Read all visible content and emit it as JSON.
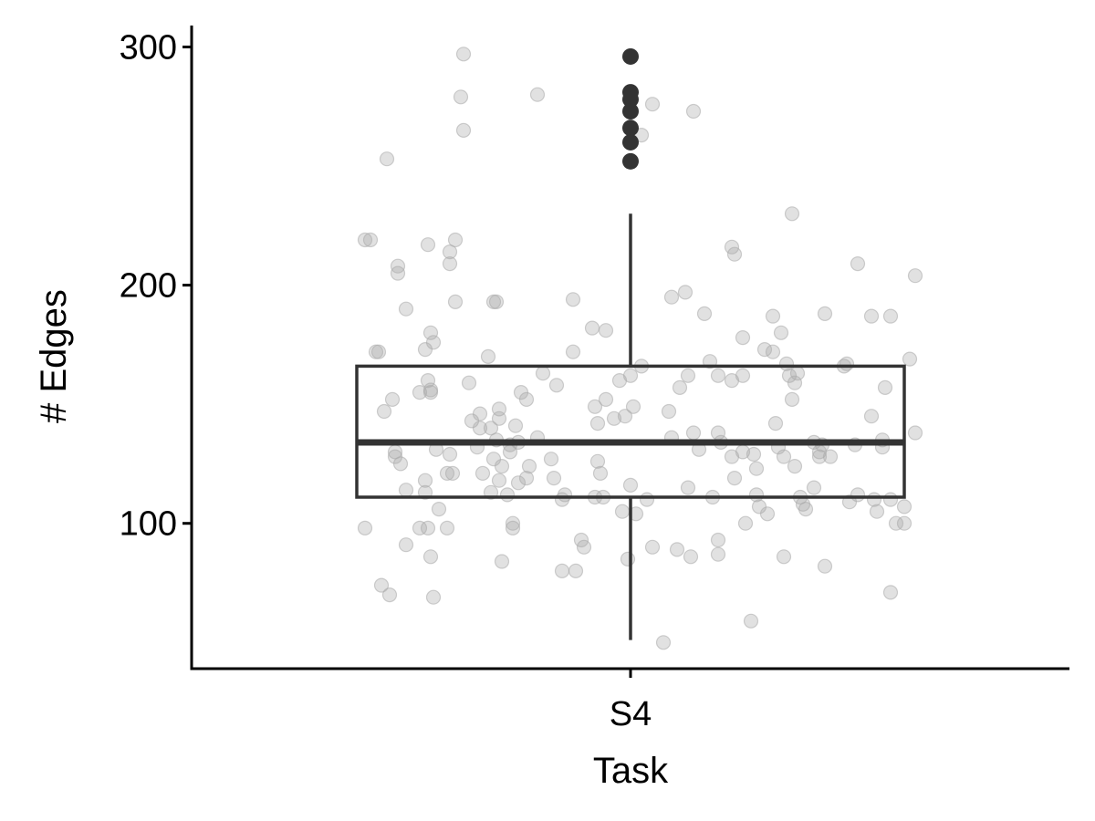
{
  "chart_data": {
    "type": "box",
    "xlabel": "Task",
    "ylabel": "# Edges",
    "categories": [
      "S4"
    ],
    "yticks": [
      100,
      200,
      300
    ],
    "ylim": [
      39,
      309
    ],
    "grid": false,
    "colors": {
      "box": "#333333",
      "jitter": "#aaaaaa",
      "outlier": "#333333",
      "axis": "#000000"
    },
    "box": {
      "category": "S4",
      "q1": 111,
      "median": 134,
      "q3": 166,
      "whisker_low": 51,
      "whisker_high": 230,
      "outliers": [
        296,
        281,
        278,
        273,
        266,
        260,
        252
      ]
    },
    "jitter_points": [
      [
        -0.95,
        219
      ],
      [
        -0.97,
        219
      ],
      [
        -0.89,
        253
      ],
      [
        -0.85,
        208
      ],
      [
        -0.85,
        205
      ],
      [
        -0.93,
        172
      ],
      [
        -0.92,
        172
      ],
      [
        -0.87,
        152
      ],
      [
        -0.9,
        147
      ],
      [
        -0.86,
        130
      ],
      [
        -0.84,
        125
      ],
      [
        -0.86,
        128
      ],
      [
        -0.82,
        190
      ],
      [
        -0.82,
        114
      ],
      [
        -0.74,
        217
      ],
      [
        -0.73,
        180
      ],
      [
        -0.72,
        176
      ],
      [
        -0.75,
        173
      ],
      [
        -0.77,
        155
      ],
      [
        -0.74,
        160
      ],
      [
        -0.73,
        155
      ],
      [
        -0.73,
        156
      ],
      [
        -0.75,
        118
      ],
      [
        -0.75,
        113
      ],
      [
        -0.97,
        98
      ],
      [
        -0.91,
        74
      ],
      [
        -0.88,
        70
      ],
      [
        -0.82,
        91
      ],
      [
        -0.77,
        98
      ],
      [
        -0.74,
        98
      ],
      [
        -0.73,
        86
      ],
      [
        -0.72,
        69
      ],
      [
        -0.7,
        106
      ],
      [
        -0.67,
        98
      ],
      [
        -0.71,
        131
      ],
      [
        -0.67,
        121
      ],
      [
        -0.66,
        129
      ],
      [
        -0.65,
        121
      ],
      [
        -0.66,
        209
      ],
      [
        -0.66,
        214
      ],
      [
        -0.64,
        219
      ],
      [
        -0.64,
        193
      ],
      [
        -0.61,
        297
      ],
      [
        -0.62,
        279
      ],
      [
        -0.61,
        265
      ],
      [
        -0.59,
        159
      ],
      [
        -0.58,
        143
      ],
      [
        -0.56,
        132
      ],
      [
        -0.55,
        146
      ],
      [
        -0.55,
        140
      ],
      [
        -0.54,
        121
      ],
      [
        -0.52,
        170
      ],
      [
        -0.51,
        140
      ],
      [
        -0.5,
        127
      ],
      [
        -0.5,
        193
      ],
      [
        -0.49,
        193
      ],
      [
        -0.48,
        148
      ],
      [
        -0.48,
        144
      ],
      [
        -0.49,
        135
      ],
      [
        -0.48,
        118
      ],
      [
        -0.47,
        124
      ],
      [
        -0.51,
        113
      ],
      [
        -0.47,
        84
      ],
      [
        -0.45,
        112
      ],
      [
        -0.44,
        133
      ],
      [
        -0.44,
        130
      ],
      [
        -0.43,
        100
      ],
      [
        -0.43,
        98
      ],
      [
        -0.42,
        141
      ],
      [
        -0.41,
        134
      ],
      [
        -0.41,
        117
      ],
      [
        -0.4,
        155
      ],
      [
        -0.37,
        124
      ],
      [
        -0.38,
        119
      ],
      [
        -0.38,
        152
      ],
      [
        -0.34,
        280
      ],
      [
        -0.34,
        136
      ],
      [
        -0.32,
        163
      ],
      [
        -0.29,
        127
      ],
      [
        -0.28,
        119
      ],
      [
        -0.27,
        158
      ],
      [
        -0.25,
        110
      ],
      [
        -0.24,
        112
      ],
      [
        -0.25,
        80
      ],
      [
        -0.21,
        194
      ],
      [
        -0.21,
        172
      ],
      [
        -0.2,
        80
      ],
      [
        -0.18,
        93
      ],
      [
        -0.17,
        90
      ],
      [
        -0.14,
        182
      ],
      [
        -0.13,
        149
      ],
      [
        -0.12,
        142
      ],
      [
        -0.11,
        121
      ],
      [
        -0.12,
        126
      ],
      [
        -0.1,
        111
      ],
      [
        -0.13,
        111
      ],
      [
        -0.09,
        181
      ],
      [
        -0.09,
        152
      ],
      [
        -0.06,
        144
      ],
      [
        -0.02,
        145
      ],
      [
        -0.04,
        160
      ],
      [
        -0.03,
        105
      ],
      [
        -0.01,
        85
      ],
      [
        0.0,
        162
      ],
      [
        0.0,
        116
      ],
      [
        0.02,
        104
      ],
      [
        0.01,
        149
      ],
      [
        0.04,
        263
      ],
      [
        0.04,
        166
      ],
      [
        0.06,
        110
      ],
      [
        0.08,
        276
      ],
      [
        0.08,
        90
      ],
      [
        0.15,
        195
      ],
      [
        0.14,
        147
      ],
      [
        0.15,
        136
      ],
      [
        0.17,
        89
      ],
      [
        0.18,
        157
      ],
      [
        0.2,
        197
      ],
      [
        0.21,
        162
      ],
      [
        0.21,
        115
      ],
      [
        0.22,
        86
      ],
      [
        0.23,
        273
      ],
      [
        0.23,
        138
      ],
      [
        0.25,
        131
      ],
      [
        0.27,
        188
      ],
      [
        0.29,
        168
      ],
      [
        0.3,
        111
      ],
      [
        0.32,
        162
      ],
      [
        0.32,
        138
      ],
      [
        0.33,
        134
      ],
      [
        0.32,
        93
      ],
      [
        0.32,
        87
      ],
      [
        0.37,
        216
      ],
      [
        0.38,
        213
      ],
      [
        0.37,
        160
      ],
      [
        0.37,
        128
      ],
      [
        0.38,
        119
      ],
      [
        0.41,
        178
      ],
      [
        0.41,
        162
      ],
      [
        0.41,
        130
      ],
      [
        0.42,
        100
      ],
      [
        0.44,
        59
      ],
      [
        0.45,
        129
      ],
      [
        0.46,
        123
      ],
      [
        0.46,
        112
      ],
      [
        0.47,
        107
      ],
      [
        0.49,
        173
      ],
      [
        0.5,
        104
      ],
      [
        0.52,
        187
      ],
      [
        0.52,
        172
      ],
      [
        0.53,
        142
      ],
      [
        0.54,
        132
      ],
      [
        0.56,
        86
      ],
      [
        0.55,
        180
      ],
      [
        0.56,
        128
      ],
      [
        0.57,
        167
      ],
      [
        0.58,
        162
      ],
      [
        0.59,
        230
      ],
      [
        0.6,
        159
      ],
      [
        0.59,
        152
      ],
      [
        0.6,
        124
      ],
      [
        0.61,
        163
      ],
      [
        0.62,
        111
      ],
      [
        0.63,
        108
      ],
      [
        0.64,
        106
      ],
      [
        0.67,
        134
      ],
      [
        0.67,
        115
      ],
      [
        0.69,
        128
      ],
      [
        0.69,
        130
      ],
      [
        0.7,
        133
      ],
      [
        0.71,
        188
      ],
      [
        0.71,
        82
      ],
      [
        0.73,
        128
      ],
      [
        0.78,
        166
      ],
      [
        0.79,
        167
      ],
      [
        0.8,
        109
      ],
      [
        0.82,
        133
      ],
      [
        0.83,
        112
      ],
      [
        0.83,
        209
      ],
      [
        0.88,
        187
      ],
      [
        0.88,
        145
      ],
      [
        0.89,
        110
      ],
      [
        0.9,
        105
      ],
      [
        0.92,
        135
      ],
      [
        0.92,
        132
      ],
      [
        0.93,
        157
      ],
      [
        0.95,
        110
      ],
      [
        0.95,
        187
      ],
      [
        0.95,
        71
      ],
      [
        0.97,
        100
      ],
      [
        1.0,
        107
      ],
      [
        1.0,
        100
      ],
      [
        1.02,
        169
      ],
      [
        1.04,
        138
      ],
      [
        1.04,
        204
      ],
      [
        0.12,
        50
      ]
    ]
  }
}
